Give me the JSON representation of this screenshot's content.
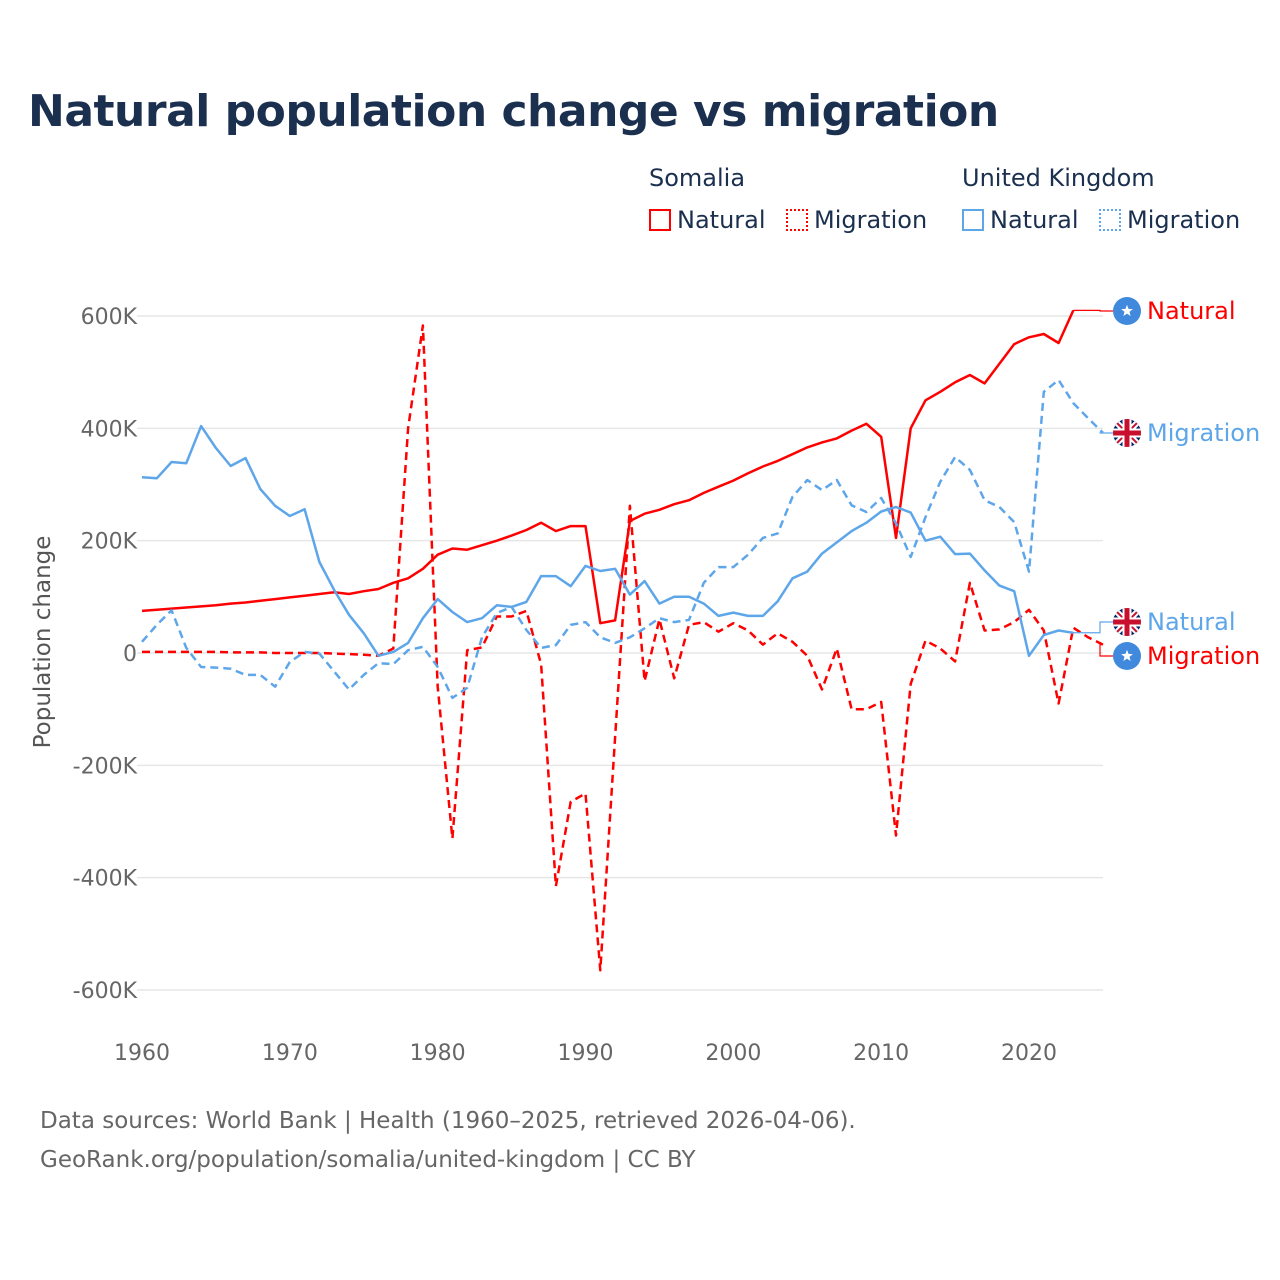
{
  "title": "Natural population change vs migration",
  "legend": {
    "groups": [
      {
        "name": "Somalia",
        "items": [
          "Natural",
          "Migration"
        ]
      },
      {
        "name": "United Kingdom",
        "items": [
          "Natural",
          "Migration"
        ]
      }
    ]
  },
  "colors": {
    "somalia": "#ff0000",
    "uk": "#5ea6ea",
    "grid": "#e6e6e6",
    "text": "#1b2f4f",
    "axis_text": "#666666"
  },
  "footer": {
    "line1": "Data sources: World Bank | Health (1960–2025, retrieved 2026-04-06).",
    "line2": "GeoRank.org/population/somalia/united-kingdom | CC BY"
  },
  "end_labels": [
    {
      "text": "Natural",
      "country": "Somalia",
      "icon": "somalia-flag-icon"
    },
    {
      "text": "Migration",
      "country": "United Kingdom",
      "icon": "uk-flag-icon"
    },
    {
      "text": "Natural",
      "country": "United Kingdom",
      "icon": "uk-flag-icon"
    },
    {
      "text": "Migration",
      "country": "Somalia",
      "icon": "somalia-flag-icon"
    }
  ],
  "chart_data": {
    "type": "line",
    "title": "Natural population change vs migration",
    "xlabel": "",
    "ylabel": "Population change",
    "xlim": [
      1960,
      2025
    ],
    "ylim": [
      -600000,
      600000
    ],
    "x_ticks": [
      "1960",
      "1970",
      "1980",
      "1990",
      "2000",
      "2010",
      "2020"
    ],
    "y_ticks": [
      "600K",
      "400K",
      "200K",
      "0",
      "-200K",
      "-400K",
      "-600K"
    ],
    "grid": true,
    "legend_position": "top-right",
    "x_start": 1960,
    "series": [
      {
        "name": "Somalia Natural",
        "style": "solid",
        "color": "#ff0000",
        "values": [
          75000,
          77000,
          79000,
          81000,
          83000,
          85000,
          88000,
          90000,
          93000,
          96000,
          99000,
          102000,
          105000,
          108000,
          105000,
          110000,
          114000,
          125000,
          133000,
          150000,
          175000,
          186000,
          184000,
          192000,
          200000,
          209000,
          219000,
          232000,
          217000,
          226000,
          226000,
          53000,
          58000,
          235000,
          248000,
          255000,
          265000,
          272000,
          285000,
          296000,
          307000,
          320000,
          332000,
          342000,
          354000,
          366000,
          375000,
          382000,
          396000,
          408000,
          385000,
          205000,
          400000,
          450000,
          465000,
          482000,
          495000,
          480000,
          515000,
          550000,
          562000,
          568000,
          552000,
          610000
        ]
      },
      {
        "name": "Somalia Migration",
        "style": "dashed",
        "color": "#ff0000",
        "values": [
          2000,
          2000,
          2000,
          2000,
          2000,
          2000,
          1000,
          1000,
          1000,
          0,
          0,
          0,
          0,
          -1000,
          -2000,
          -3000,
          -5000,
          8000,
          400000,
          583000,
          -60000,
          -330000,
          5000,
          10000,
          65000,
          65000,
          75000,
          -20000,
          -415000,
          -265000,
          -250000,
          -565000,
          -150000,
          262000,
          -50000,
          60000,
          -45000,
          50000,
          55000,
          38000,
          53000,
          40000,
          15000,
          35000,
          20000,
          -5000,
          -65000,
          8000,
          -100000,
          -100000,
          -87000,
          -325000,
          -55000,
          22000,
          8000,
          -15000,
          125000,
          40000,
          42000,
          55000,
          77000,
          40000,
          -90000,
          45000,
          28000,
          15000
        ]
      },
      {
        "name": "United Kingdom Natural",
        "style": "solid",
        "color": "#5ea6ea",
        "values": [
          313000,
          311000,
          340000,
          338000,
          404000,
          365000,
          333000,
          347000,
          292000,
          262000,
          244000,
          256000,
          162000,
          112000,
          68000,
          35000,
          -5000,
          2000,
          18000,
          62000,
          96000,
          73000,
          55000,
          62000,
          85000,
          82000,
          91000,
          137000,
          137000,
          119000,
          155000,
          146000,
          150000,
          104000,
          128000,
          88000,
          100000,
          100000,
          88000,
          66000,
          72000,
          66000,
          66000,
          92000,
          133000,
          145000,
          177000,
          197000,
          217000,
          232000,
          252000,
          260000,
          250000,
          200000,
          207000,
          176000,
          177000,
          147000,
          120000,
          110000,
          -5000,
          32000,
          40000,
          36000
        ]
      },
      {
        "name": "United Kingdom Migration",
        "style": "dashed",
        "color": "#5ea6ea",
        "values": [
          20000,
          50000,
          76000,
          9000,
          -25000,
          -26000,
          -28000,
          -39000,
          -39000,
          -60000,
          -16000,
          2000,
          -1000,
          -33000,
          -65000,
          -39000,
          -18000,
          -20000,
          5000,
          11000,
          -25000,
          -80000,
          -62000,
          28000,
          71000,
          82000,
          41000,
          9000,
          14000,
          50000,
          55000,
          28000,
          18000,
          28000,
          44000,
          62000,
          55000,
          59000,
          125000,
          153000,
          153000,
          175000,
          205000,
          213000,
          278000,
          308000,
          290000,
          308000,
          263000,
          251000,
          276000,
          231000,
          171000,
          242000,
          305000,
          349000,
          326000,
          272000,
          260000,
          233000,
          145000,
          465000,
          486000,
          445000,
          418000,
          392000
        ]
      }
    ]
  }
}
